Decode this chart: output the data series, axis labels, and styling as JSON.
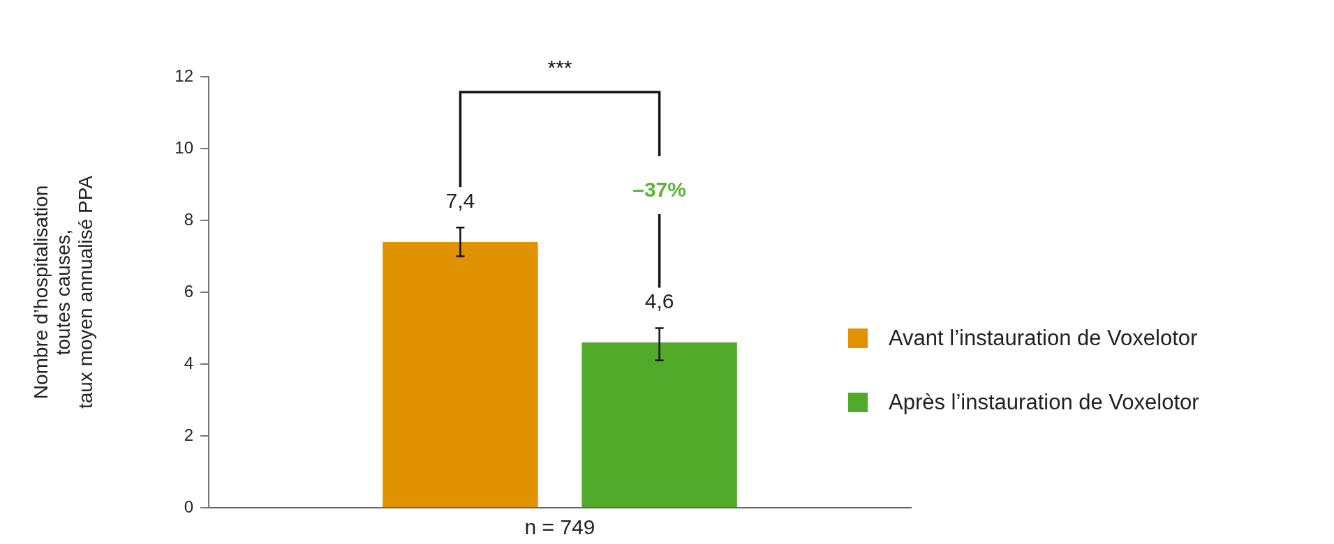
{
  "chart_data": {
    "type": "bar",
    "categories": [
      "n = 749"
    ],
    "ylabel": "Nombre d’hospitalisation\ntoutes causes,\ntaux moyen annualisé PPA",
    "series": [
      {
        "name": "Avant l’instauration de Voxelotor",
        "color": "#e09200",
        "values": [
          7.4
        ],
        "errors": [
          [
            7.0,
            7.8
          ]
        ],
        "value_labels": [
          "7,4"
        ]
      },
      {
        "name": "Après l’instauration de Voxelotor",
        "color": "#52aa2a",
        "values": [
          4.6
        ],
        "errors": [
          [
            4.1,
            5.0
          ]
        ],
        "value_labels": [
          "4,6"
        ]
      }
    ],
    "ylim": [
      0,
      12
    ],
    "yticks": [
      0,
      2,
      4,
      6,
      8,
      10,
      12
    ],
    "grid": false,
    "legend": "right",
    "annotations": [
      "***",
      "–37%"
    ]
  }
}
